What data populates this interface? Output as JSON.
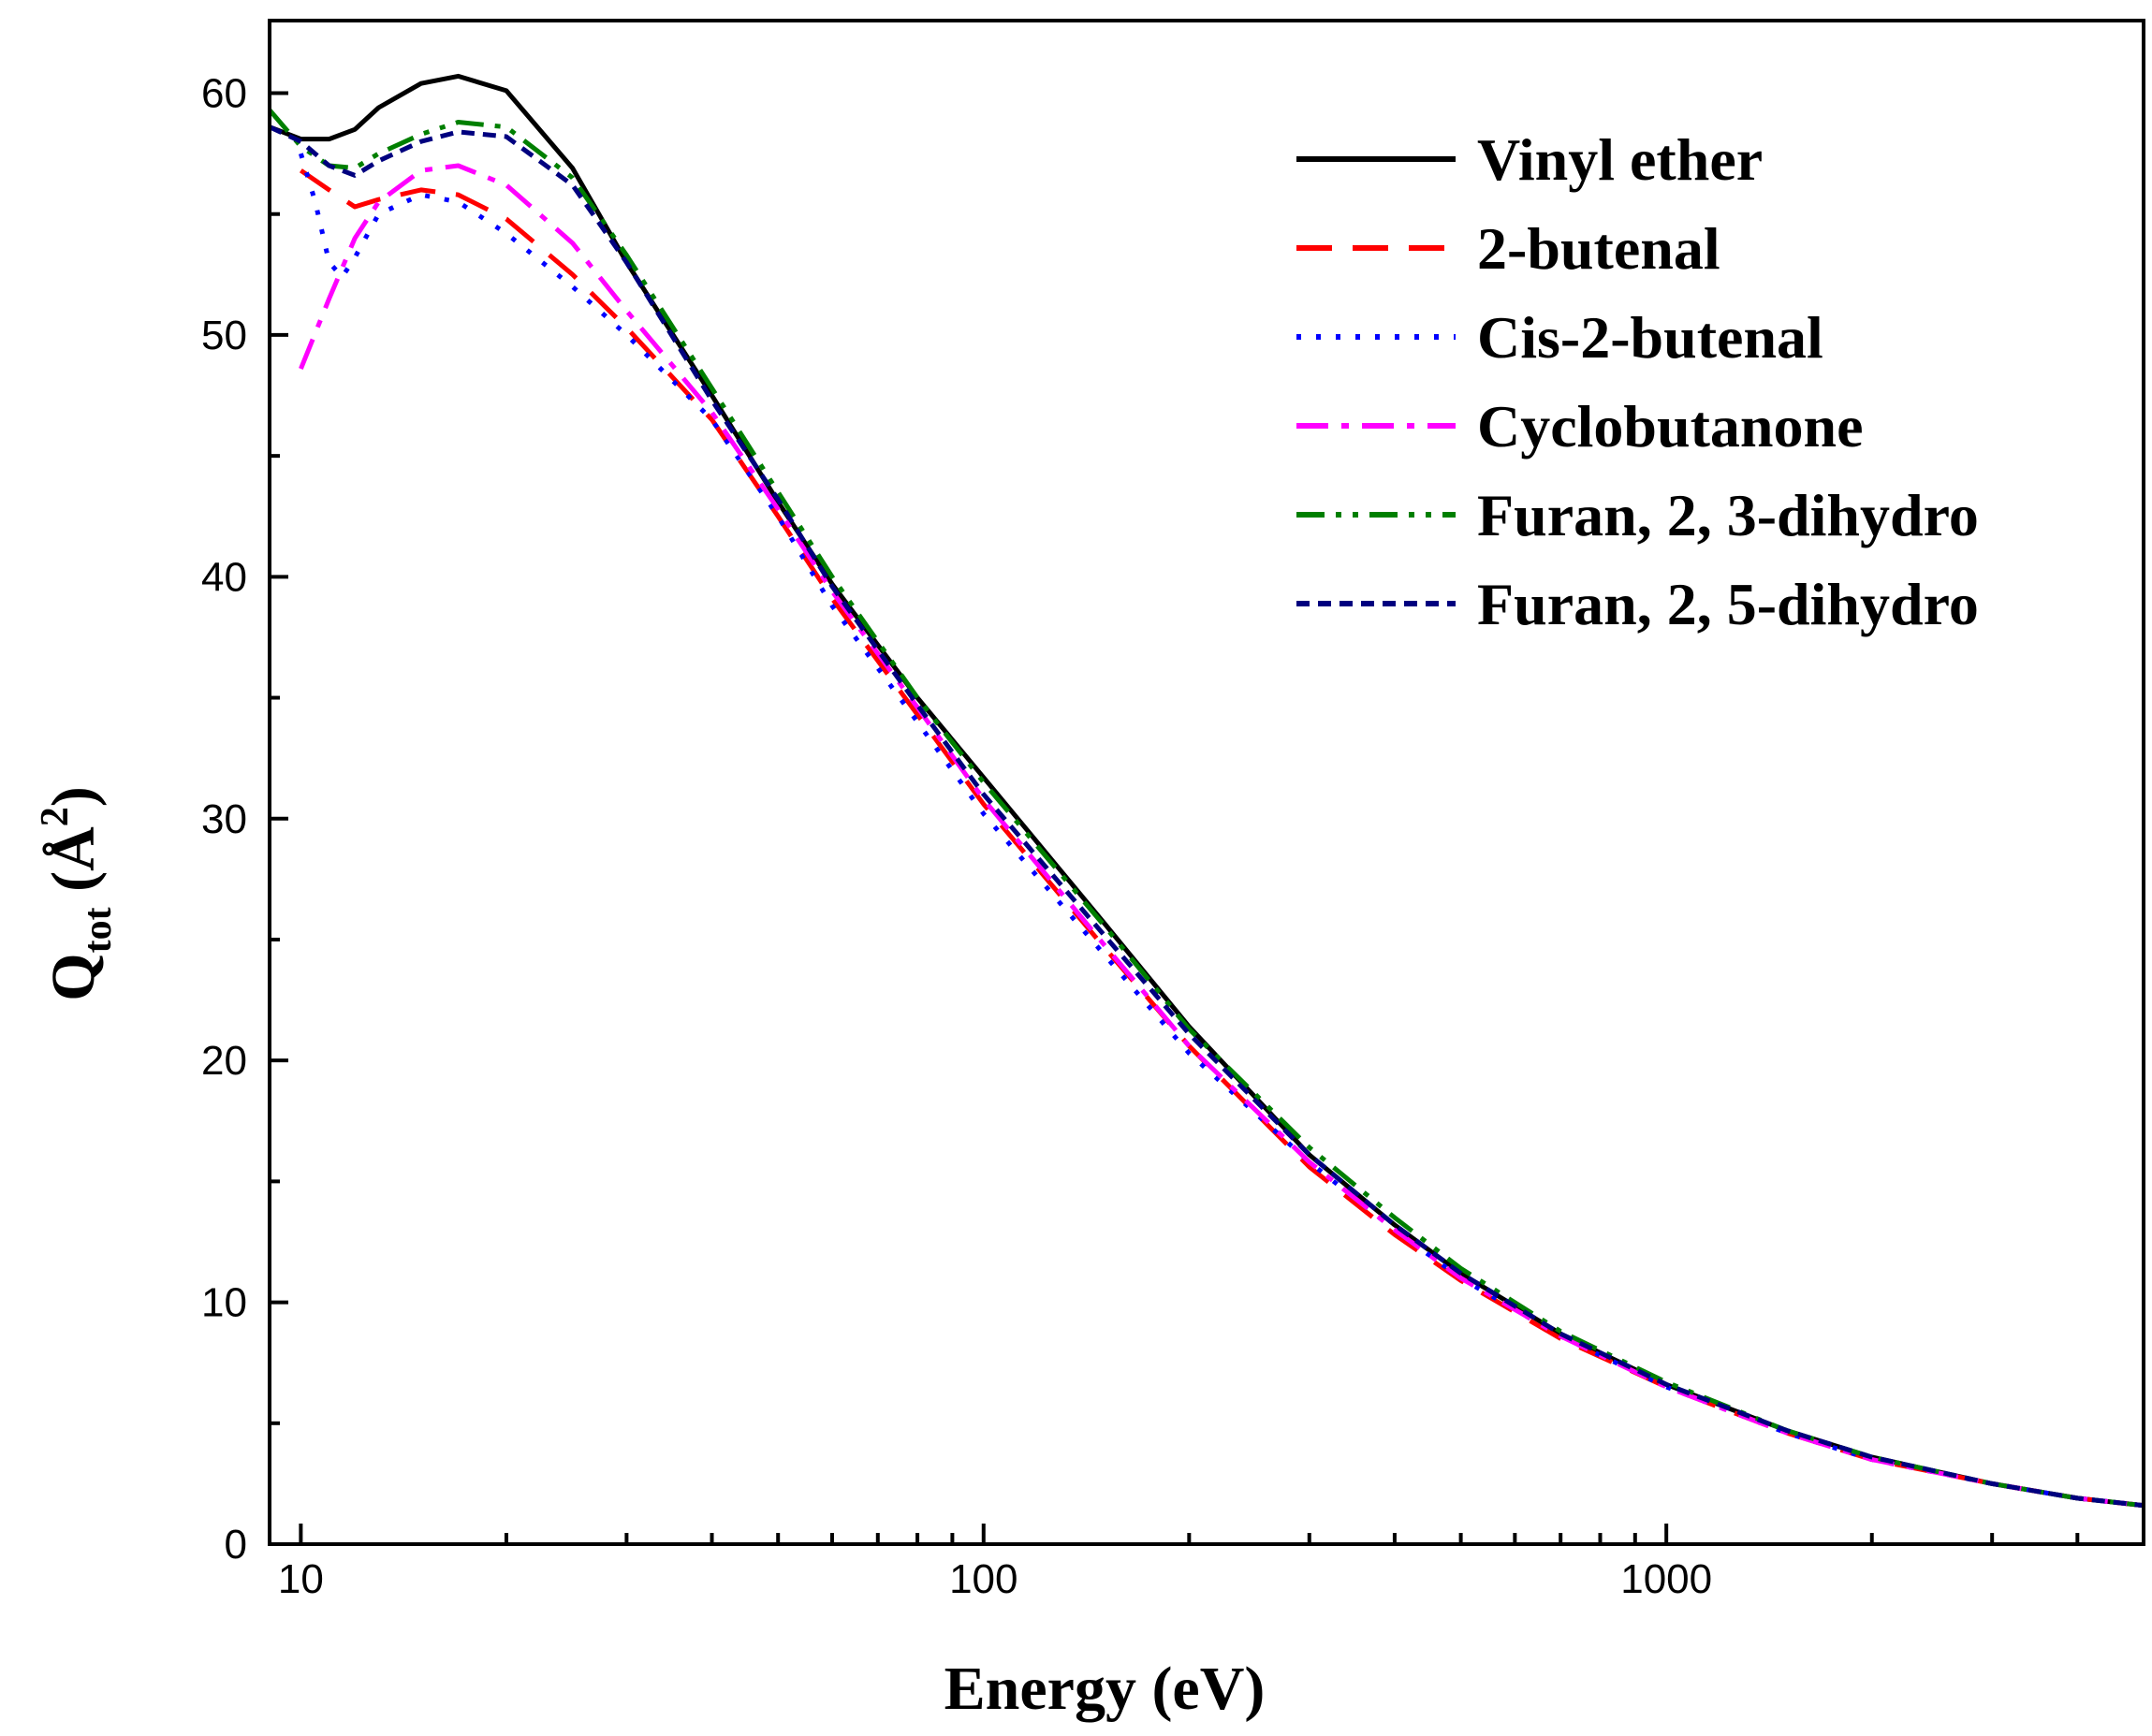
{
  "chart_data": {
    "type": "line",
    "title": "",
    "xlabel": "Energy (eV)",
    "ylabel": {
      "main": "Q",
      "subscript": "tot",
      "unit_open": " (",
      "unit": "Å",
      "superscript": "2",
      "unit_close": ")"
    },
    "xscale": "log",
    "xlim": [
      9,
      5000
    ],
    "ylim": [
      0,
      63
    ],
    "xticks": [
      10,
      100,
      1000
    ],
    "xtick_labels": [
      "10",
      "100",
      "1000"
    ],
    "yticks": [
      0,
      10,
      20,
      30,
      40,
      50,
      60
    ],
    "ytick_labels": [
      "0",
      "10",
      "20",
      "30",
      "40",
      "50",
      "60"
    ],
    "grid": false,
    "legend_position": "top-right",
    "series": [
      {
        "name": "Vinyl ether",
        "color": "#000000",
        "dash": "solid",
        "x": [
          9,
          10,
          11,
          12,
          13,
          15,
          17,
          20,
          25,
          30,
          40,
          50,
          60,
          80,
          100,
          150,
          200,
          300,
          400,
          500,
          700,
          1000,
          1500,
          2000,
          3000,
          4000,
          5000
        ],
        "y": [
          58.6,
          58.1,
          58.1,
          58.5,
          59.4,
          60.4,
          60.7,
          60.1,
          56.9,
          53.0,
          47.5,
          43.1,
          39.7,
          35.0,
          31.7,
          25.7,
          21.4,
          16.1,
          13.2,
          11.2,
          8.7,
          6.6,
          4.7,
          3.6,
          2.5,
          1.9,
          1.6
        ]
      },
      {
        "name": "2-butenal",
        "color": "#ff0000",
        "dash": "long-dash",
        "x": [
          10,
          11,
          12,
          13,
          15,
          17,
          20,
          25,
          30,
          40,
          50,
          60,
          80,
          100,
          150,
          200,
          300,
          400,
          500,
          700,
          1000,
          1500,
          2000,
          3000,
          4000,
          5000
        ],
        "y": [
          56.8,
          56.0,
          55.3,
          55.6,
          56.0,
          55.8,
          54.8,
          52.5,
          50.3,
          46.5,
          42.5,
          39.1,
          34.3,
          30.6,
          24.7,
          20.6,
          15.6,
          12.8,
          10.9,
          8.5,
          6.5,
          4.6,
          3.5,
          2.5,
          1.9,
          1.6
        ]
      },
      {
        "name": "Cis-2-butenal",
        "color": "#0000ff",
        "dash": "dotted",
        "x": [
          10,
          10.5,
          11,
          11.5,
          12,
          13,
          15,
          17,
          20,
          25,
          30,
          40,
          50,
          60,
          80,
          100,
          150,
          200,
          300,
          400,
          500,
          700,
          1000,
          1500,
          2000,
          3000,
          4000,
          5000
        ],
        "y": [
          57.5,
          55.5,
          53.0,
          52.4,
          53.2,
          55.0,
          55.8,
          55.5,
          54.2,
          52.0,
          50.0,
          46.5,
          42.5,
          38.8,
          34.0,
          30.2,
          24.4,
          20.3,
          15.8,
          13.0,
          11.0,
          8.6,
          6.5,
          4.6,
          3.5,
          2.5,
          1.9,
          1.6
        ]
      },
      {
        "name": "Cyclobutanone",
        "color": "#ff00ff",
        "dash": "dash-dot",
        "x": [
          10,
          11,
          12,
          13,
          15,
          17,
          20,
          25,
          30,
          40,
          50,
          60,
          80,
          100,
          150,
          200,
          300,
          400,
          500,
          700,
          1000,
          1500,
          2000,
          3000,
          4000,
          5000
        ],
        "y": [
          48.6,
          51.5,
          54.0,
          55.5,
          56.8,
          57.0,
          56.2,
          53.8,
          51.0,
          46.8,
          42.8,
          39.4,
          34.6,
          30.8,
          24.8,
          20.6,
          15.8,
          13.0,
          11.0,
          8.6,
          6.5,
          4.6,
          3.5,
          2.5,
          1.9,
          1.6
        ]
      },
      {
        "name": "Furan, 2, 3-dihydro",
        "color": "#007f00",
        "dash": "dash-dot-dot",
        "x": [
          9,
          10,
          11,
          12,
          13,
          15,
          17,
          20,
          25,
          30,
          40,
          50,
          60,
          80,
          100,
          150,
          200,
          300,
          400,
          500,
          700,
          1000,
          1500,
          2000,
          3000,
          4000,
          5000
        ],
        "y": [
          59.3,
          57.8,
          57.0,
          56.9,
          57.5,
          58.3,
          58.8,
          58.6,
          56.5,
          53.3,
          47.8,
          43.5,
          40.0,
          35.0,
          31.5,
          25.6,
          21.3,
          16.4,
          13.5,
          11.4,
          8.8,
          6.7,
          4.7,
          3.6,
          2.5,
          1.9,
          1.6
        ]
      },
      {
        "name": "Furan, 2, 5-dihydro",
        "color": "#00007f",
        "dash": "short-dash",
        "x": [
          9,
          10,
          11,
          12,
          13,
          15,
          17,
          20,
          25,
          30,
          40,
          50,
          60,
          80,
          100,
          150,
          200,
          300,
          400,
          500,
          700,
          1000,
          1500,
          2000,
          3000,
          4000,
          5000
        ],
        "y": [
          58.6,
          58.0,
          57.0,
          56.6,
          57.2,
          58.0,
          58.4,
          58.2,
          56.2,
          53.0,
          47.3,
          43.2,
          39.6,
          34.7,
          31.0,
          25.2,
          21.1,
          16.1,
          13.2,
          11.2,
          8.7,
          6.6,
          4.7,
          3.6,
          2.5,
          1.9,
          1.6
        ]
      }
    ]
  }
}
